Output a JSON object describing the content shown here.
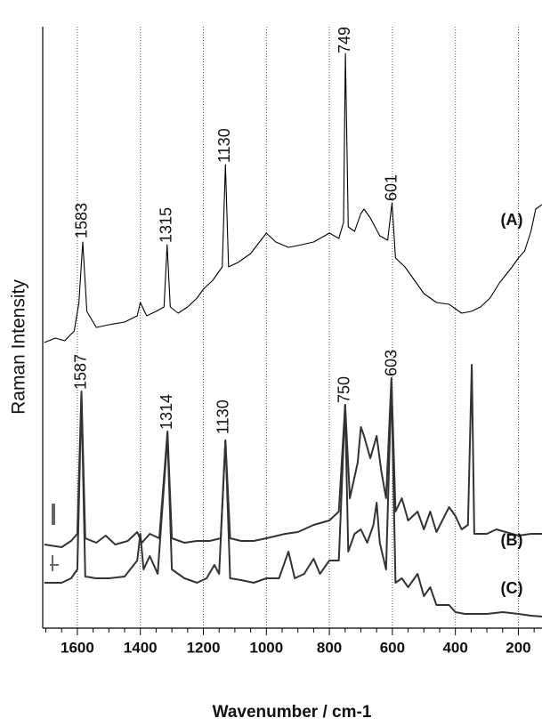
{
  "chart_data": {
    "type": "line",
    "xlabel": "Wavenumber / cm-1",
    "ylabel": "Raman Intensity",
    "xlim": [
      1710,
      125
    ],
    "ylim": [
      0,
      676
    ],
    "xticks": [
      1600,
      1400,
      1200,
      1000,
      800,
      600,
      400,
      200
    ],
    "xminor_ticks": [
      1700,
      1650,
      1550,
      1500,
      1450,
      1350,
      1300,
      1250,
      1150,
      1100,
      1050,
      950,
      900,
      850,
      750,
      700,
      650,
      550,
      500,
      450,
      350,
      300,
      250,
      150
    ],
    "grid": true,
    "series": [
      {
        "name": "(A)",
        "color": "#000000",
        "x": [
          1705,
          1670,
          1640,
          1610,
          1595,
          1583,
          1570,
          1540,
          1500,
          1450,
          1410,
          1400,
          1380,
          1350,
          1325,
          1315,
          1305,
          1280,
          1250,
          1220,
          1200,
          1170,
          1140,
          1130,
          1120,
          1090,
          1050,
          1000,
          970,
          930,
          900,
          850,
          800,
          770,
          755,
          749,
          740,
          720,
          700,
          690,
          670,
          640,
          615,
          601,
          590,
          560,
          530,
          500,
          460,
          420,
          380,
          350,
          320,
          290,
          260,
          220,
          200,
          180,
          160,
          145,
          125
        ],
        "values": [
          321,
          326,
          323,
          334,
          366,
          434,
          356,
          338,
          341,
          344,
          351,
          366,
          351,
          356,
          361,
          431,
          361,
          354,
          361,
          371,
          381,
          391,
          406,
          521,
          406,
          411,
          421,
          444,
          434,
          428,
          430,
          434,
          444,
          438,
          456,
          646,
          451,
          446,
          466,
          471,
          461,
          441,
          436,
          478,
          416,
          406,
          391,
          376,
          366,
          364,
          354,
          356,
          361,
          371,
          388,
          406,
          416,
          424,
          446,
          471,
          476
        ]
      },
      {
        "name": "(B)",
        "color": "#333333",
        "x": [
          1705,
          1650,
          1620,
          1600,
          1587,
          1575,
          1540,
          1510,
          1480,
          1440,
          1410,
          1395,
          1370,
          1340,
          1314,
          1300,
          1260,
          1220,
          1180,
          1145,
          1130,
          1115,
          1080,
          1040,
          1000,
          940,
          900,
          850,
          800,
          770,
          750,
          735,
          710,
          700,
          690,
          670,
          650,
          635,
          620,
          603,
          590,
          570,
          550,
          520,
          500,
          480,
          460,
          420,
          400,
          380,
          360,
          348,
          340,
          300,
          270,
          240,
          200,
          160,
          125
        ],
        "values": [
          94,
          91,
          98,
          106,
          266,
          101,
          96,
          104,
          94,
          98,
          108,
          96,
          106,
          101,
          221,
          101,
          96,
          98,
          98,
          101,
          211,
          101,
          98,
          98,
          101,
          106,
          108,
          116,
          121,
          131,
          251,
          146,
          186,
          226,
          216,
          191,
          216,
          176,
          146,
          281,
          131,
          146,
          121,
          131,
          111,
          131,
          108,
          136,
          126,
          111,
          116,
          296,
          106,
          106,
          111,
          108,
          104,
          106,
          106
        ]
      },
      {
        "name": "(C)",
        "color": "#333333",
        "x": [
          1705,
          1650,
          1620,
          1600,
          1587,
          1575,
          1540,
          1500,
          1450,
          1410,
          1400,
          1390,
          1370,
          1345,
          1314,
          1300,
          1260,
          1220,
          1190,
          1165,
          1150,
          1130,
          1115,
          1080,
          1040,
          1000,
          960,
          930,
          910,
          880,
          850,
          830,
          800,
          770,
          750,
          740,
          720,
          700,
          680,
          660,
          650,
          640,
          620,
          603,
          590,
          570,
          550,
          520,
          500,
          480,
          460,
          420,
          400,
          370,
          300,
          250,
          200,
          160,
          125
        ],
        "values": [
          51,
          51,
          56,
          66,
          261,
          58,
          56,
          56,
          58,
          76,
          106,
          66,
          81,
          61,
          216,
          66,
          56,
          51,
          56,
          71,
          61,
          211,
          56,
          54,
          51,
          56,
          56,
          86,
          56,
          61,
          78,
          61,
          76,
          76,
          251,
          86,
          106,
          111,
          96,
          116,
          141,
          96,
          66,
          276,
          51,
          56,
          46,
          61,
          36,
          46,
          26,
          26,
          18,
          16,
          16,
          18,
          16,
          14,
          13
        ]
      }
    ],
    "annotations": [
      {
        "text": "1583",
        "x": 1583,
        "y": 436
      },
      {
        "text": "1315",
        "x": 1315,
        "y": 431
      },
      {
        "text": "1130",
        "x": 1130,
        "y": 521
      },
      {
        "text": "749",
        "x": 749,
        "y": 644
      },
      {
        "text": "601",
        "x": 601,
        "y": 478
      },
      {
        "text": "1587",
        "x": 1587,
        "y": 266
      },
      {
        "text": "1314",
        "x": 1314,
        "y": 221
      },
      {
        "text": "1130",
        "x": 1134,
        "y": 216
      },
      {
        "text": "750",
        "x": 750,
        "y": 251
      },
      {
        "text": "603",
        "x": 600,
        "y": 281
      }
    ]
  }
}
